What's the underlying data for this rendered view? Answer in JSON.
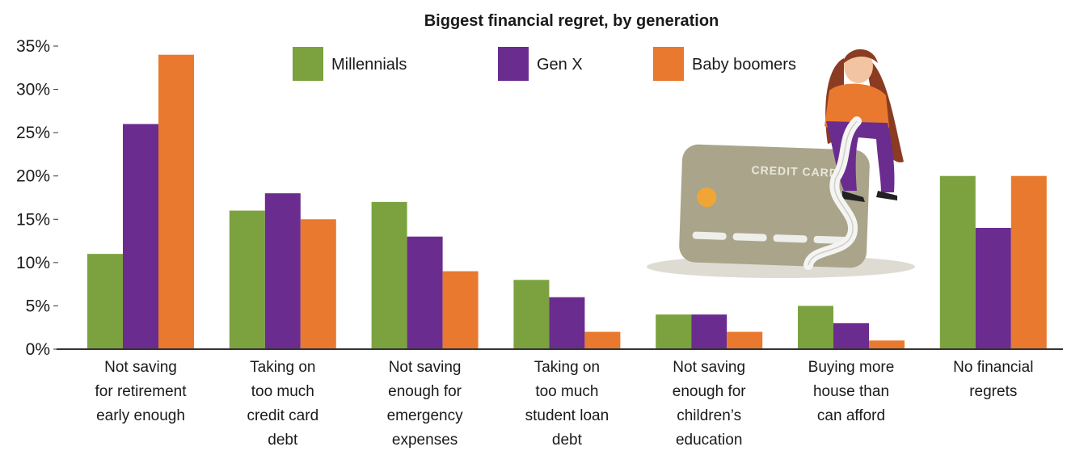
{
  "chart_data": {
    "type": "bar",
    "title": "Biggest financial regret, by generation",
    "categories": [
      [
        "Not saving",
        "for retirement",
        "early enough"
      ],
      [
        "Taking on",
        "too much",
        "credit card",
        "debt"
      ],
      [
        "Not saving",
        "enough for",
        "emergency",
        "expenses"
      ],
      [
        "Taking on",
        "too much",
        "student loan",
        "debt"
      ],
      [
        "Not saving",
        "enough for",
        "children’s",
        "education"
      ],
      [
        "Buying more",
        "house than",
        "can afford"
      ],
      [
        "No financial",
        "regrets"
      ]
    ],
    "series": [
      {
        "name": "Millennials",
        "color": "#7ba23f",
        "values": [
          11,
          16,
          17,
          8,
          4,
          5,
          20
        ]
      },
      {
        "name": "Gen X",
        "color": "#6b2c8f",
        "values": [
          26,
          18,
          13,
          6,
          4,
          3,
          14
        ]
      },
      {
        "name": "Baby boomers",
        "color": "#e8792f",
        "values": [
          34,
          15,
          9,
          2,
          2,
          1,
          20
        ]
      }
    ],
    "ylim": [
      0,
      35
    ],
    "yticks": [
      "0%",
      "5%",
      "10%",
      "15%",
      "20%",
      "25%",
      "30%",
      "35%"
    ],
    "legend_position": "top",
    "grid": false
  },
  "illustration": {
    "card_text": "CREDIT CARD",
    "icon": "woman-sitting-on-credit-card-illustration"
  }
}
